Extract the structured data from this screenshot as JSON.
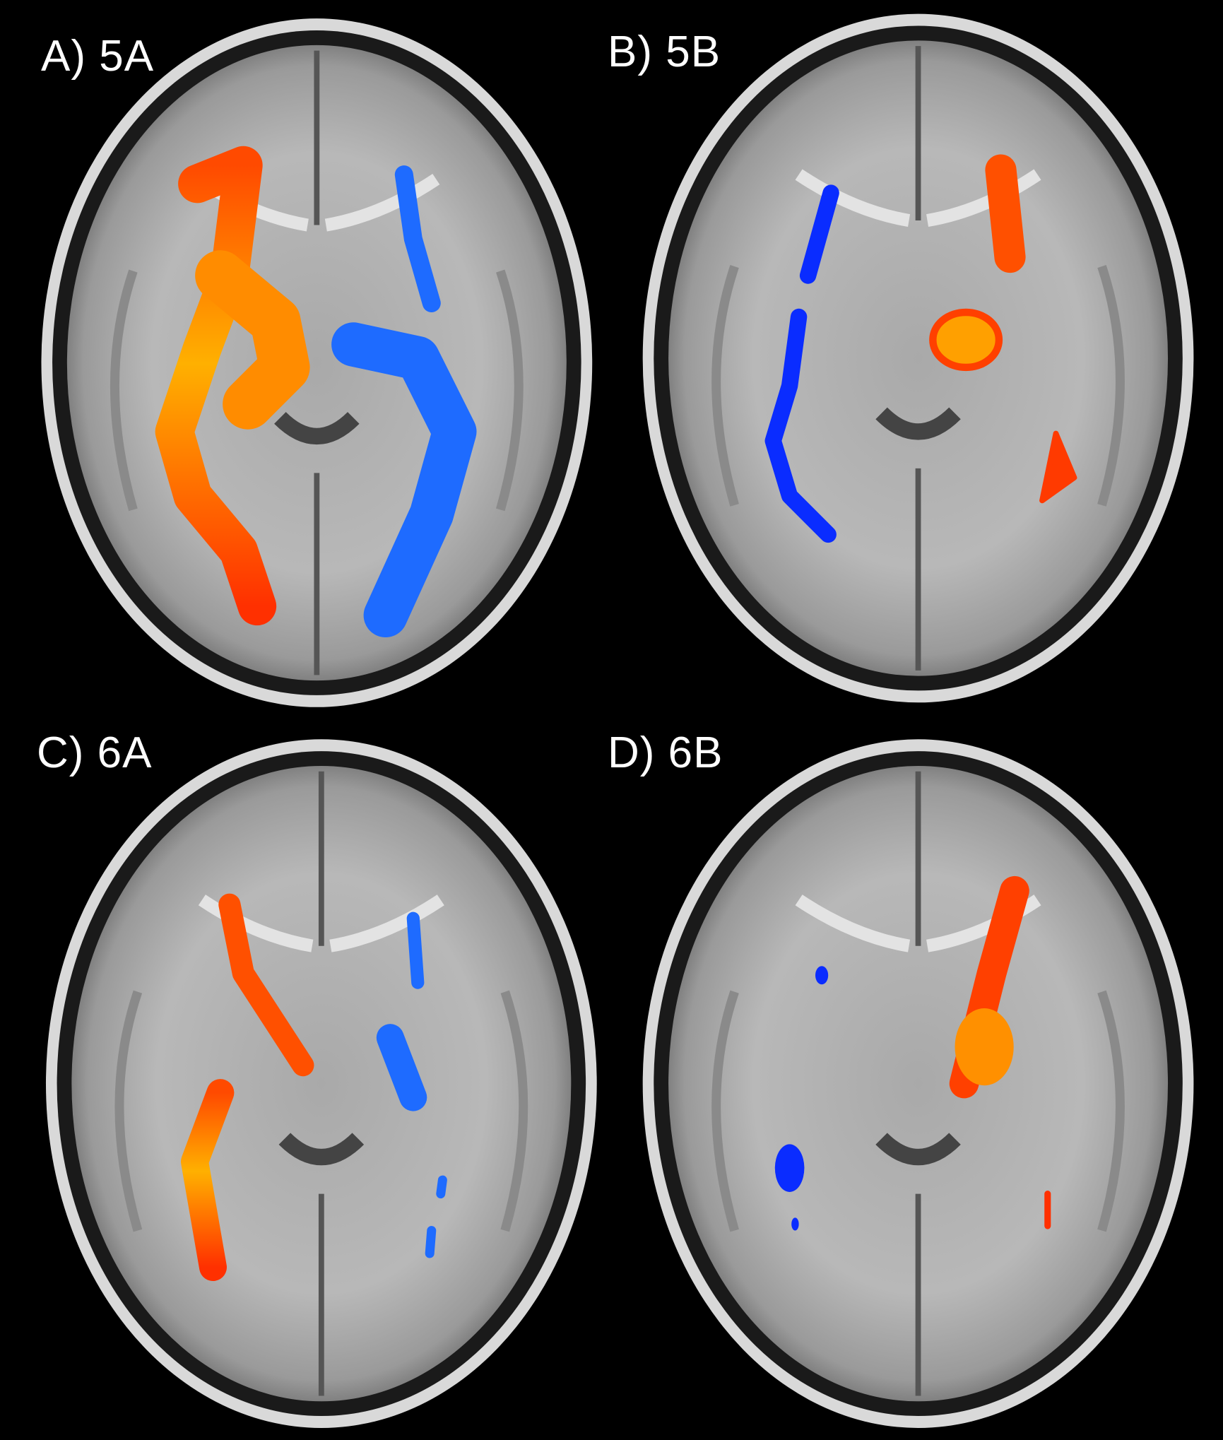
{
  "panels": [
    {
      "label": "A) 5A"
    },
    {
      "label": "B) 5B"
    },
    {
      "label": "C) 6A"
    },
    {
      "label": "D) 6B"
    }
  ],
  "colors": {
    "background": "#000000",
    "positive_cluster": "#ff3a00",
    "positive_peak": "#ffd400",
    "negative_cluster": "#1e6bff",
    "negative_dark": "#0a2cff"
  }
}
